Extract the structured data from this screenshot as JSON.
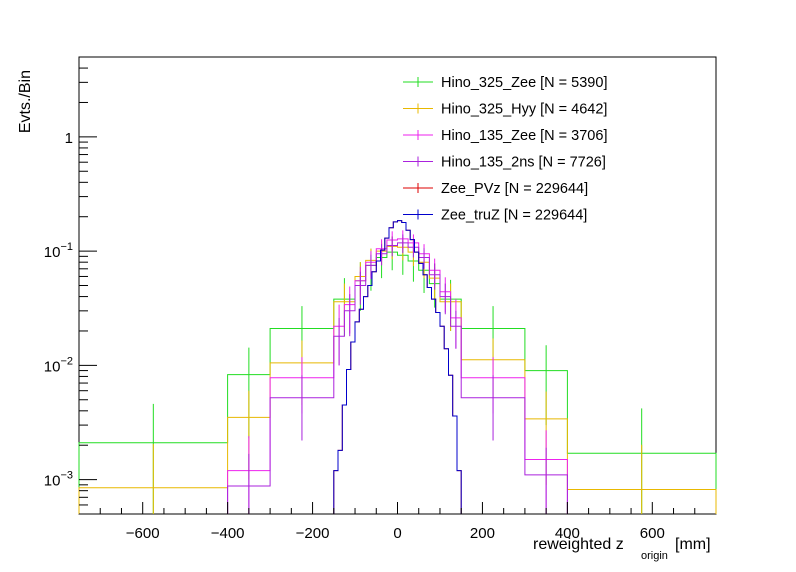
{
  "chart_data": {
    "type": "histogram-step",
    "title": "",
    "xlabel": "reweighted z",
    "xlabel_sub": "origin",
    "xlabel_unit": "[mm]",
    "ylabel": "Evts./Bin",
    "xlim": [
      -750,
      750
    ],
    "ylim": [
      0.0005,
      5
    ],
    "yscale": "log",
    "x_ticks": [
      -600,
      -400,
      -200,
      0,
      200,
      400,
      600
    ],
    "x_tick_labels": [
      "−600",
      "−400",
      "−200",
      "0",
      "200",
      "400",
      "600"
    ],
    "y_ticks": [
      {
        "value": 0.001,
        "base": "10",
        "exp": "−3"
      },
      {
        "value": 0.01,
        "base": "10",
        "exp": "−2"
      },
      {
        "value": 0.1,
        "base": "10",
        "exp": "−1"
      },
      {
        "value": 1,
        "base": "1",
        "exp": ""
      }
    ],
    "legend_position": "top-right",
    "series": [
      {
        "name": "Hino_325_Zee [N = 5390]",
        "color": "#22dd22",
        "edges": [
          -750,
          -400,
          -300,
          -150,
          -100,
          -75,
          -50,
          -25,
          0,
          25,
          50,
          75,
          100,
          150,
          300,
          400,
          750
        ],
        "values": [
          0.0021,
          0.0083,
          0.021,
          0.038,
          0.055,
          0.075,
          0.088,
          0.098,
          0.092,
          0.082,
          0.068,
          0.052,
          0.038,
          0.021,
          0.009,
          0.0017
        ],
        "errors": [
          0.0025,
          0.006,
          0.012,
          0.02,
          0.025,
          0.03,
          0.03,
          0.03,
          0.03,
          0.028,
          0.025,
          0.02,
          0.018,
          0.012,
          0.006,
          0.0025
        ]
      },
      {
        "name": "Hino_325_Hyy [N = 4642]",
        "color": "#e8b800",
        "edges": [
          -750,
          -400,
          -300,
          -150,
          -100,
          -75,
          -50,
          -25,
          0,
          25,
          50,
          75,
          100,
          150,
          300,
          400,
          750
        ],
        "values": [
          0.00085,
          0.0035,
          0.0105,
          0.036,
          0.06,
          0.083,
          0.1,
          0.11,
          0.108,
          0.098,
          0.08,
          0.058,
          0.036,
          0.0112,
          0.0034,
          0.00082
        ],
        "errors": [
          0.0012,
          0.0025,
          0.006,
          0.016,
          0.02,
          0.022,
          0.024,
          0.025,
          0.025,
          0.024,
          0.022,
          0.02,
          0.016,
          0.006,
          0.0025,
          0.0012
        ]
      },
      {
        "name": "Hino_135_Zee [N = 3706]",
        "color": "#ee22ee",
        "edges": [
          -400,
          -300,
          -150,
          -125,
          -100,
          -75,
          -50,
          -25,
          0,
          25,
          50,
          75,
          100,
          125,
          150,
          300,
          400
        ],
        "values": [
          0.0012,
          0.0078,
          0.022,
          0.034,
          0.055,
          0.08,
          0.105,
          0.125,
          0.128,
          0.118,
          0.095,
          0.068,
          0.044,
          0.026,
          0.0078,
          0.0015
        ],
        "errors": [
          0.0012,
          0.004,
          0.012,
          0.015,
          0.018,
          0.02,
          0.022,
          0.024,
          0.024,
          0.022,
          0.02,
          0.018,
          0.015,
          0.012,
          0.004,
          0.0012
        ]
      },
      {
        "name": "Hino_135_2ns [N = 7726]",
        "color": "#aa22dd",
        "edges": [
          -400,
          -300,
          -150,
          -125,
          -100,
          -75,
          -50,
          -25,
          0,
          25,
          50,
          75,
          100,
          125,
          150,
          300,
          400
        ],
        "values": [
          0.00088,
          0.0052,
          0.018,
          0.03,
          0.05,
          0.075,
          0.095,
          0.112,
          0.118,
          0.108,
          0.088,
          0.062,
          0.04,
          0.022,
          0.0052,
          0.0011
        ],
        "errors": [
          0.0008,
          0.003,
          0.008,
          0.012,
          0.016,
          0.018,
          0.02,
          0.022,
          0.022,
          0.02,
          0.018,
          0.016,
          0.012,
          0.008,
          0.003,
          0.0008
        ]
      },
      {
        "name": "Zee_PVz [N = 229644]",
        "color": "#dd0000",
        "edges": [
          -150,
          -140,
          -130,
          -120,
          -110,
          -100,
          -90,
          -80,
          -70,
          -60,
          -50,
          -40,
          -30,
          -20,
          -10,
          0,
          10,
          20,
          30,
          40,
          50,
          60,
          70,
          80,
          90,
          100,
          110,
          120,
          130,
          140,
          150
        ],
        "values": [
          0.0012,
          0.0018,
          0.0045,
          0.0092,
          0.016,
          0.024,
          0.031,
          0.04,
          0.05,
          0.066,
          0.082,
          0.102,
          0.13,
          0.16,
          0.18,
          0.185,
          0.178,
          0.152,
          0.126,
          0.098,
          0.078,
          0.062,
          0.048,
          0.038,
          0.029,
          0.022,
          0.014,
          0.0082,
          0.0036,
          0.0012
        ],
        "errors": []
      },
      {
        "name": "Zee_truZ [N = 229644]",
        "color": "#0000cc",
        "edges": [
          -150,
          -140,
          -130,
          -120,
          -110,
          -100,
          -90,
          -80,
          -70,
          -60,
          -50,
          -40,
          -30,
          -20,
          -10,
          0,
          10,
          20,
          30,
          40,
          50,
          60,
          70,
          80,
          90,
          100,
          110,
          120,
          130,
          140,
          150
        ],
        "values": [
          0.0012,
          0.0018,
          0.0045,
          0.0092,
          0.016,
          0.024,
          0.031,
          0.04,
          0.05,
          0.066,
          0.082,
          0.102,
          0.13,
          0.16,
          0.18,
          0.185,
          0.178,
          0.152,
          0.126,
          0.098,
          0.078,
          0.062,
          0.048,
          0.038,
          0.029,
          0.022,
          0.014,
          0.0082,
          0.0036,
          0.0012
        ],
        "errors": []
      }
    ]
  }
}
